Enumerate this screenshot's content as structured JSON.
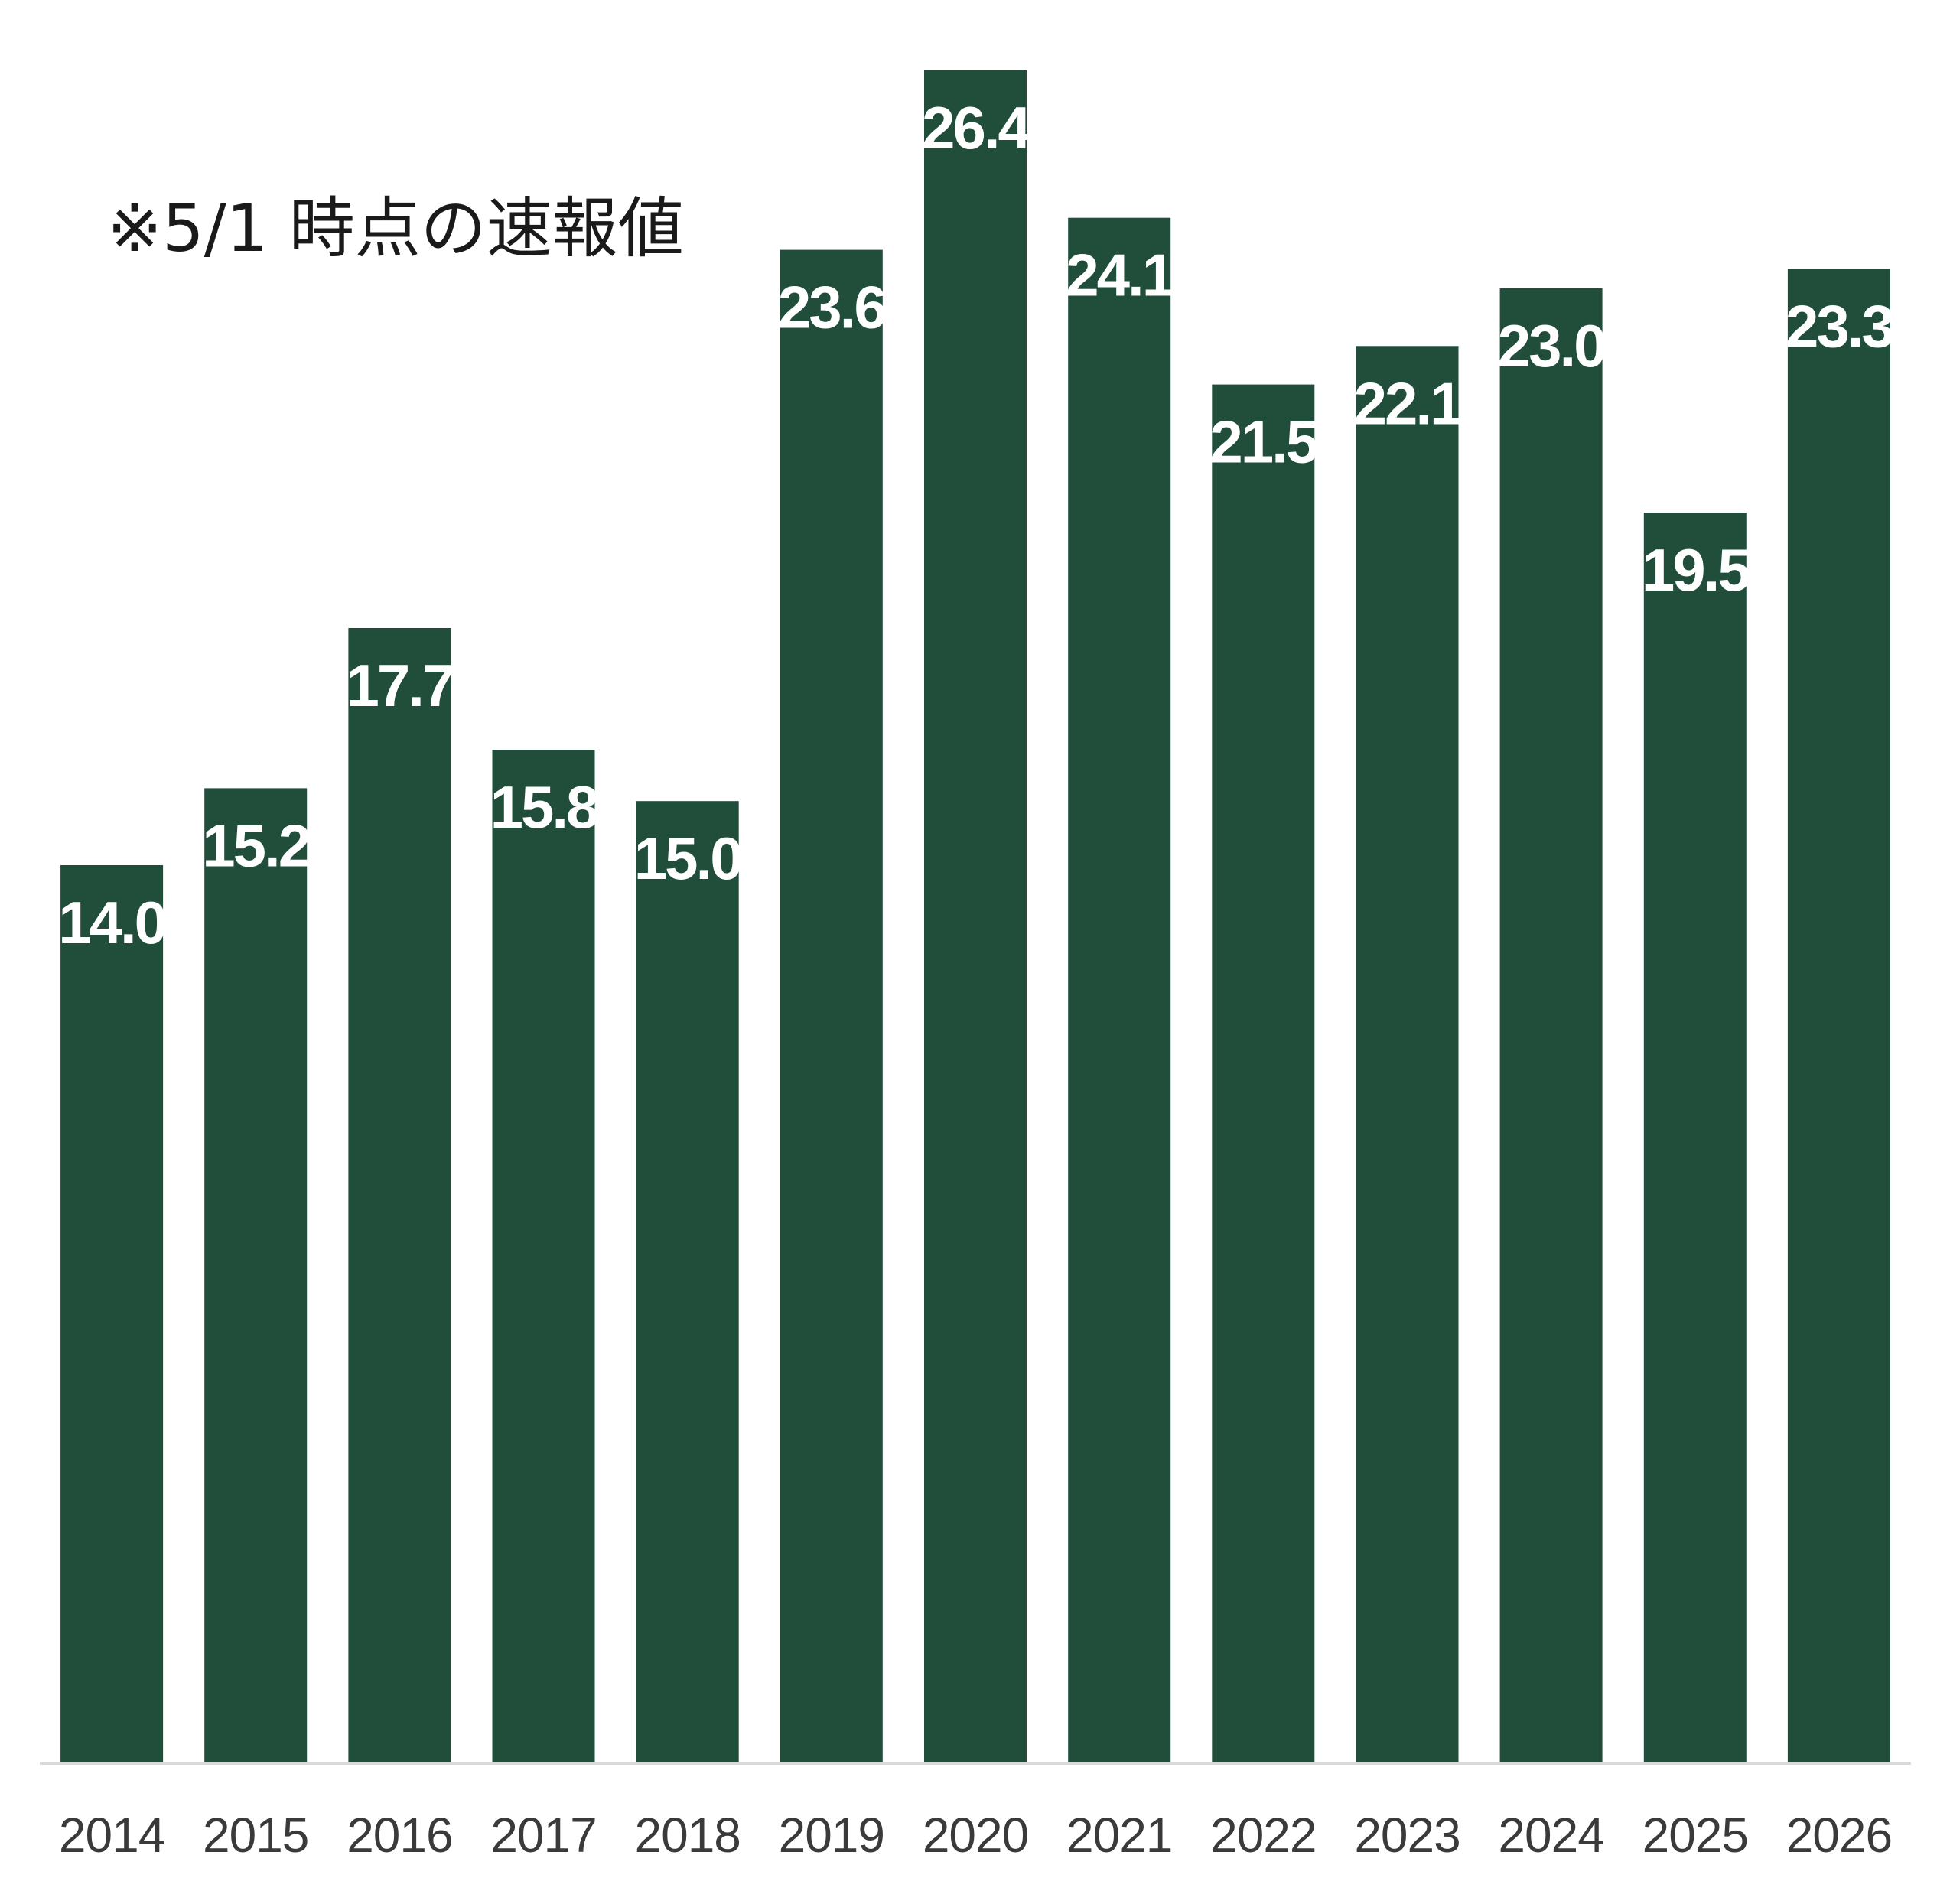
{
  "note": "※5/1 時点の速報値",
  "colors": {
    "bar": "#214d3b",
    "bar_label": "#ffffff",
    "tick_label": "#3a3a3a",
    "axis": "#d9d9d9"
  },
  "chart_data": {
    "type": "bar",
    "title": "",
    "xlabel": "",
    "ylabel": "",
    "categories": [
      "2014",
      "2015",
      "2016",
      "2017",
      "2018",
      "2019",
      "2020",
      "2021",
      "2022",
      "2023",
      "2024",
      "2025",
      "2026"
    ],
    "values": [
      14.0,
      15.2,
      17.7,
      15.8,
      15.0,
      23.6,
      26.4,
      24.1,
      21.5,
      22.1,
      23.0,
      19.5,
      23.3
    ],
    "value_labels": [
      "14.0",
      "15.2",
      "17.7",
      "15.8",
      "15.0",
      "23.6",
      "26.4",
      "24.1",
      "21.5",
      "22.1",
      "23.0",
      "19.5",
      "23.3"
    ],
    "ylim": [
      0,
      26.4
    ],
    "grid": false,
    "legend": "none",
    "data_labels": "inside-top"
  }
}
